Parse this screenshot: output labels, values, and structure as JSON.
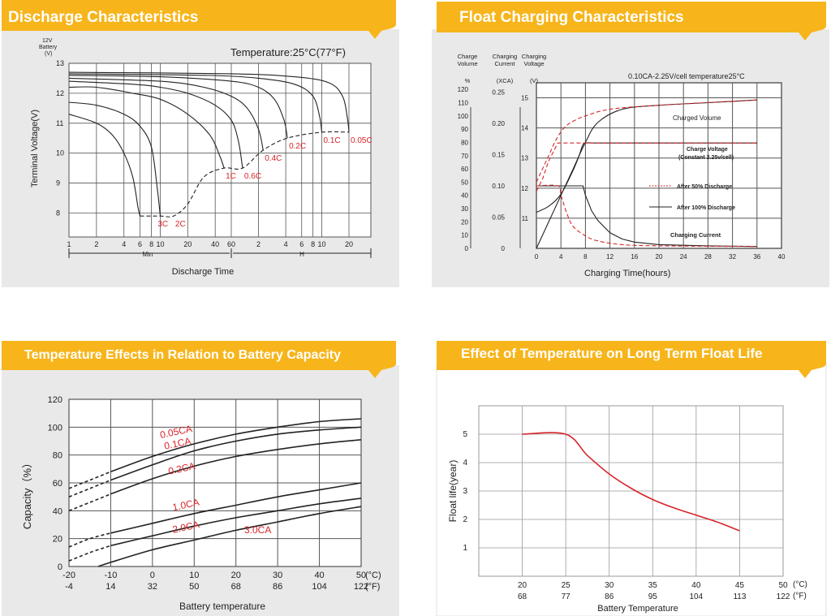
{
  "colors": {
    "banner": "#f7b51b",
    "banner_text": "#ffffff",
    "panel_bg": "#e9e9e9",
    "chart_bg": "#ffffff",
    "grid": "#555555",
    "curve": "#222222",
    "red": "#d8242a"
  },
  "panels": [
    {
      "title": "Discharge Characteristics"
    },
    {
      "title": "Float Charging Characteristics"
    },
    {
      "title": "Temperature Effects in Relation to Battery Capacity"
    },
    {
      "title": "Effect of Temperature on Long Term Float Life"
    }
  ],
  "chart_data": [
    {
      "type": "line",
      "name": "discharge",
      "annotation": "Temperature:25°C(77°F)",
      "ylabel": "Terminal Voltage(V)",
      "ylabel_top": [
        "12V",
        "Battery",
        "(V)"
      ],
      "xlabel": "Discharge Time",
      "x_units": [
        "Min",
        "H"
      ],
      "ylim": [
        7.2,
        13
      ],
      "yticks": [
        8,
        9,
        10,
        11,
        12,
        13
      ],
      "xticks_min": [
        "1",
        "2",
        "4",
        "6",
        "8",
        "10",
        "20",
        "40",
        "60"
      ],
      "xticks_h": [
        "2",
        "4",
        "6",
        "8",
        "10",
        "20"
      ],
      "cutoff_labels": [
        {
          "label": "3C",
          "x": 9,
          "y": 7.9
        },
        {
          "label": "2C",
          "x": 14,
          "y": 7.9
        },
        {
          "label": "1C",
          "x": 50,
          "y": 9.5
        },
        {
          "label": "0.6C",
          "x": 80,
          "y": 9.5
        },
        {
          "label": "0.4C",
          "x": 135,
          "y": 10.1
        },
        {
          "label": "0.2C",
          "x": 250,
          "y": 10.5
        },
        {
          "label": "0.1C",
          "x": 600,
          "y": 10.7
        },
        {
          "label": "0.05C",
          "x": 1200,
          "y": 10.7
        }
      ],
      "series": [
        {
          "label": "3C",
          "x": [
            1,
            2,
            3,
            4,
            5,
            5.7,
            6
          ],
          "y": [
            11.3,
            11.0,
            10.6,
            10.0,
            9.2,
            8.2,
            7.9
          ]
        },
        {
          "label": "2C",
          "x": [
            1,
            2,
            4,
            6,
            8,
            9.3,
            10
          ],
          "y": [
            11.7,
            11.6,
            11.3,
            10.9,
            10.2,
            8.8,
            7.9
          ]
        },
        {
          "label": "1C",
          "x": [
            1,
            2,
            5,
            10,
            20,
            35,
            45,
            50
          ],
          "y": [
            12.2,
            12.2,
            12.0,
            11.8,
            11.3,
            10.6,
            9.9,
            9.5
          ]
        },
        {
          "label": "0.6C",
          "x": [
            1,
            5,
            10,
            20,
            40,
            60,
            72,
            80
          ],
          "y": [
            12.4,
            12.3,
            12.2,
            12.0,
            11.6,
            11.1,
            10.4,
            9.5
          ]
        },
        {
          "label": "0.4C",
          "x": [
            1,
            10,
            30,
            60,
            90,
            120,
            135
          ],
          "y": [
            12.5,
            12.4,
            12.2,
            11.9,
            11.5,
            10.8,
            10.1
          ]
        },
        {
          "label": "0.2C",
          "x": [
            1,
            10,
            60,
            120,
            180,
            230,
            250
          ],
          "y": [
            12.6,
            12.55,
            12.4,
            12.2,
            11.8,
            11.1,
            10.5
          ]
        },
        {
          "label": "0.1C",
          "x": [
            1,
            30,
            120,
            300,
            480,
            570,
            600
          ],
          "y": [
            12.65,
            12.6,
            12.5,
            12.3,
            11.9,
            11.2,
            10.7
          ]
        },
        {
          "label": "0.05C",
          "x": [
            1,
            60,
            300,
            720,
            1020,
            1150,
            1200
          ],
          "y": [
            12.7,
            12.65,
            12.55,
            12.35,
            11.9,
            11.2,
            10.7
          ]
        }
      ],
      "cutoff_curve": {
        "x": [
          6,
          10,
          14,
          20,
          30,
          50,
          80,
          135,
          250,
          600,
          1200
        ],
        "y": [
          7.9,
          7.9,
          7.9,
          8.3,
          9.2,
          9.5,
          9.5,
          10.1,
          10.5,
          10.7,
          10.7
        ]
      }
    },
    {
      "type": "line",
      "name": "float-charging",
      "xlabel": "Charging Time(hours)",
      "header": "0.10CA-2.25V/cell  temperature25°C",
      "axis_headers": [
        {
          "lines": [
            "Charge",
            "Volume"
          ],
          "unit": "%"
        },
        {
          "lines": [
            "Charging",
            "Current"
          ],
          "unit": "(XCA)"
        },
        {
          "lines": [
            "Charging",
            "Voltage"
          ],
          "unit": "(V)"
        }
      ],
      "xticks": [
        0,
        4,
        8,
        12,
        16,
        20,
        24,
        28,
        32,
        36,
        40
      ],
      "xlim": [
        0,
        40
      ],
      "volume_ticks": [
        0,
        10,
        20,
        30,
        40,
        50,
        60,
        70,
        80,
        90,
        100,
        110,
        120
      ],
      "current_ticks": [
        "0",
        "0.05",
        "0.10",
        "0.15",
        "0.20",
        "0.25"
      ],
      "voltage_ticks": [
        11,
        12,
        13,
        14,
        15
      ],
      "labels": {
        "charged_volume": "Charged Volume",
        "charge_voltage": "Charge Voltage",
        "charge_voltage_sub": "(Constant 2.25v/cell)",
        "after_50": "After 50% Discharge",
        "after_100": "After 100% Discharge",
        "charging_current": "Charging Current"
      },
      "series_100_solid": {
        "volume": {
          "x": [
            0,
            2,
            4,
            6,
            8,
            10,
            14,
            20,
            28,
            36
          ],
          "y": [
            0,
            20,
            40,
            60,
            80,
            95,
            105,
            108,
            110,
            112
          ]
        },
        "voltage": {
          "x": [
            0,
            2,
            4,
            6,
            7,
            7.5,
            8,
            10,
            14,
            20,
            36
          ],
          "y": [
            11.2,
            11.4,
            11.8,
            12.6,
            13.1,
            13.4,
            13.5,
            13.5,
            13.5,
            13.5,
            13.5
          ]
        },
        "current": {
          "x": [
            0,
            7.4,
            7.6,
            8,
            9,
            10,
            12,
            14,
            16,
            20,
            28,
            36
          ],
          "y": [
            0.1,
            0.1,
            0.1,
            0.085,
            0.06,
            0.045,
            0.025,
            0.015,
            0.01,
            0.006,
            0.004,
            0.003
          ]
        }
      },
      "series_50_dashed": {
        "volume": {
          "x": [
            0,
            1,
            2,
            3,
            4,
            5,
            6,
            8,
            12,
            20,
            36
          ],
          "y": [
            50,
            60,
            70,
            80,
            88,
            93,
            96,
            100,
            105,
            108,
            112
          ]
        },
        "voltage": {
          "x": [
            0,
            1,
            2,
            3,
            3.5,
            4,
            10,
            36
          ],
          "y": [
            11.9,
            12.3,
            12.9,
            13.3,
            13.5,
            13.5,
            13.5,
            13.5
          ]
        },
        "current": {
          "x": [
            0,
            3.5,
            4,
            5,
            6,
            8,
            10,
            14,
            20,
            36
          ],
          "y": [
            0.1,
            0.1,
            0.085,
            0.055,
            0.035,
            0.02,
            0.012,
            0.006,
            0.004,
            0.003
          ]
        }
      }
    },
    {
      "type": "line",
      "name": "temperature-capacity",
      "ylabel": "Capacity（%）",
      "xlabel": "Battery temperature",
      "xlim": [
        -20,
        50
      ],
      "ylim": [
        0,
        120
      ],
      "xticks_c": [
        -20,
        -10,
        0,
        10,
        20,
        30,
        40,
        50
      ],
      "xticks_f": [
        -4,
        14,
        32,
        50,
        68,
        86,
        104,
        122
      ],
      "yticks": [
        0,
        20,
        40,
        60,
        80,
        100,
        120
      ],
      "unit_c": "(°C)",
      "unit_f": "(°F)",
      "series": [
        {
          "label": "0.05CA",
          "x": [
            -20,
            -15,
            -10,
            0,
            10,
            20,
            30,
            40,
            50
          ],
          "y": [
            56,
            62,
            68,
            79,
            88,
            95,
            100,
            104,
            106
          ],
          "dash_until": -15
        },
        {
          "label": "0.1CA",
          "x": [
            -20,
            -15,
            -10,
            0,
            10,
            20,
            30,
            40,
            50
          ],
          "y": [
            50,
            56,
            62,
            73,
            83,
            90,
            95,
            98,
            100
          ],
          "dash_until": -15
        },
        {
          "label": "0.2CA",
          "x": [
            -20,
            -15,
            -10,
            0,
            10,
            20,
            30,
            40,
            50
          ],
          "y": [
            40,
            46,
            52,
            63,
            72,
            79,
            84,
            88,
            91
          ],
          "dash_until": -15
        },
        {
          "label": "1.0CA",
          "x": [
            -20,
            -15,
            -10,
            0,
            10,
            20,
            30,
            40,
            50
          ],
          "y": [
            14,
            20,
            24,
            31,
            38,
            44,
            50,
            55,
            60
          ],
          "dash_until": -15
        },
        {
          "label": "2.0CA",
          "x": [
            -20,
            -15,
            -10,
            0,
            10,
            20,
            30,
            40,
            50
          ],
          "y": [
            4,
            10,
            15,
            22,
            29,
            35,
            40,
            45,
            49
          ],
          "dash_until": -15
        },
        {
          "label": "3.0CA",
          "x": [
            -13,
            -10,
            0,
            10,
            20,
            30,
            40,
            50
          ],
          "y": [
            0,
            3,
            12,
            19,
            26,
            32,
            38,
            43
          ],
          "dash_until": -100
        }
      ],
      "label_positions": [
        {
          "label": "0.05CA",
          "x": 2,
          "y": 92
        },
        {
          "label": "0.1CA",
          "x": 3,
          "y": 84
        },
        {
          "label": "0.2CA",
          "x": 4,
          "y": 66
        },
        {
          "label": "1.0CA",
          "x": 5,
          "y": 40
        },
        {
          "label": "2.0CA",
          "x": 5,
          "y": 24
        },
        {
          "label": "3.0CA",
          "x": 22,
          "y": 24
        }
      ]
    },
    {
      "type": "line",
      "name": "float-life",
      "ylabel": "Float life(year)",
      "xlabel": "Battery Temperature",
      "xlim": [
        15,
        50
      ],
      "ylim": [
        0,
        6
      ],
      "xticks_c": [
        20,
        25,
        30,
        35,
        40,
        45,
        50
      ],
      "xticks_f": [
        68,
        77,
        86,
        95,
        104,
        113,
        122
      ],
      "yticks": [
        1,
        2,
        3,
        4,
        5
      ],
      "unit_c": "(°C)",
      "unit_f": "(°F)",
      "series": [
        {
          "x": [
            20,
            25,
            27.5,
            30,
            32.5,
            35,
            37.5,
            40,
            42.5,
            45
          ],
          "y": [
            5,
            5,
            4.25,
            3.6,
            3.1,
            2.7,
            2.4,
            2.15,
            1.9,
            1.6
          ]
        }
      ]
    }
  ]
}
